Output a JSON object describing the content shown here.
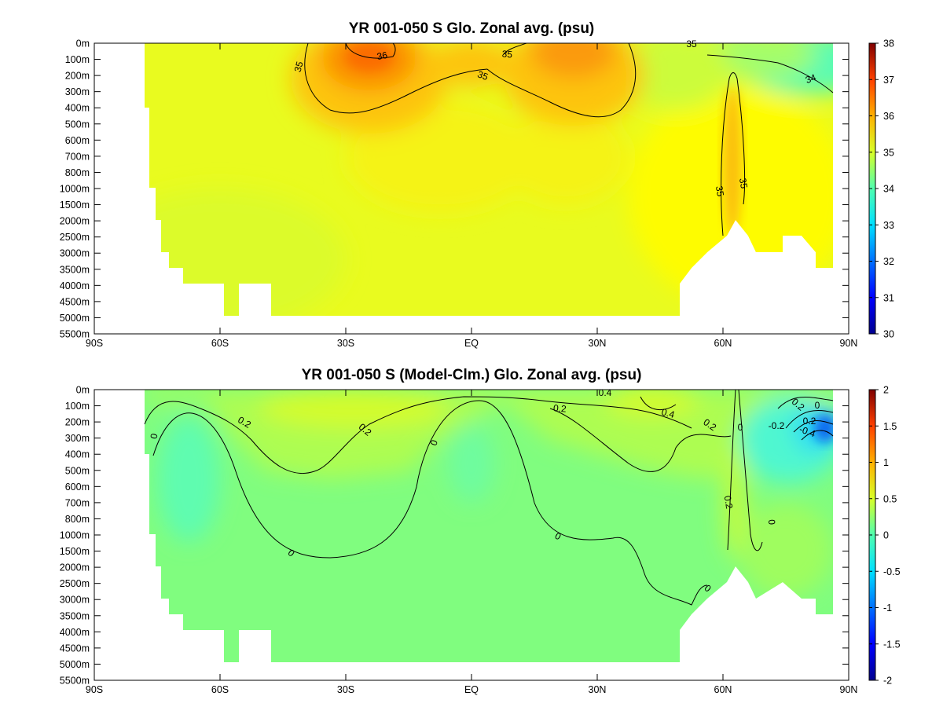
{
  "chart_data": [
    {
      "type": "heatmap",
      "title": "YR 001-050 S Glo. Zonal avg. (psu)",
      "x_ticks": [
        "90S",
        "60S",
        "30S",
        "EQ",
        "30N",
        "60N",
        "90N"
      ],
      "y_ticks": [
        "0m",
        "100m",
        "200m",
        "300m",
        "400m",
        "500m",
        "600m",
        "700m",
        "800m",
        "1000m",
        "1500m",
        "2000m",
        "2500m",
        "3000m",
        "3500m",
        "4000m",
        "4500m",
        "5000m",
        "5500m"
      ],
      "xlim": [
        -90,
        90
      ],
      "y_axis": "depth, non-linear scale, inverted",
      "colorbar": {
        "min": 30,
        "max": 38,
        "ticks": [
          "30",
          "31",
          "32",
          "33",
          "34",
          "35",
          "36",
          "37",
          "38"
        ],
        "colormap": "jet"
      },
      "contour_labels": [
        "35",
        "36",
        "35",
        "35",
        "35",
        "34",
        "35",
        "35"
      ],
      "features": [
        {
          "lat": -20,
          "depth": "100m",
          "value": 36.8
        },
        {
          "lat": 25,
          "depth": "50m",
          "value": 36.5
        },
        {
          "lat": 62,
          "depth": "800m",
          "value": 35.2
        },
        {
          "lat": 88,
          "depth": "100m",
          "value": 33.5
        },
        {
          "lat": 0,
          "depth": "3000m",
          "value": 34.7
        }
      ]
    },
    {
      "type": "heatmap",
      "title": "YR 001-050 S (Model-Clm.) Glo. Zonal avg. (psu)",
      "x_ticks": [
        "90S",
        "60S",
        "30S",
        "EQ",
        "30N",
        "60N",
        "90N"
      ],
      "y_ticks": [
        "0m",
        "100m",
        "200m",
        "300m",
        "400m",
        "500m",
        "600m",
        "700m",
        "800m",
        "1000m",
        "1500m",
        "2000m",
        "2500m",
        "3000m",
        "3500m",
        "4000m",
        "4500m",
        "5000m",
        "5500m"
      ],
      "xlim": [
        -90,
        90
      ],
      "y_axis": "depth, non-linear scale, inverted",
      "colorbar": {
        "min": -2,
        "max": 2,
        "ticks": [
          "2",
          "1.5",
          "1",
          "0.5",
          "0",
          "-0.5",
          "-1",
          "-1.5",
          "-2"
        ],
        "colormap": "jet"
      },
      "contour_labels": [
        "0",
        "0.2",
        "0.2",
        "0",
        "0.2",
        "0.4",
        "0.4",
        "0.2",
        "0",
        "0.2",
        "-0.2",
        "-0.4",
        "0",
        "0",
        "0",
        "0",
        "0.2",
        "0.2",
        "0"
      ],
      "features": [
        {
          "lat": -20,
          "depth": "50m",
          "value": 0.35
        },
        {
          "lat": 48,
          "depth": "100m",
          "value": 0.45
        },
        {
          "lat": 85,
          "depth": "250m",
          "value": -0.8
        },
        {
          "lat": -68,
          "depth": "600m",
          "value": -0.15
        },
        {
          "lat": 0,
          "depth": "3000m",
          "value": -0.05
        }
      ]
    }
  ]
}
